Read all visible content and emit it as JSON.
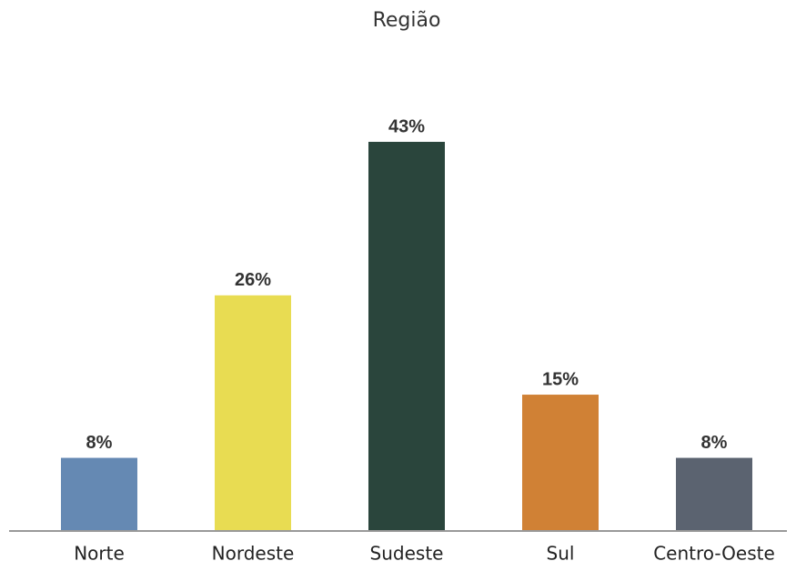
{
  "chart_data": {
    "type": "bar",
    "title": "Região",
    "categories": [
      "Norte",
      "Nordeste",
      "Sudeste",
      "Sul",
      "Centro-Oeste"
    ],
    "values": [
      8,
      26,
      43,
      15,
      8
    ],
    "value_labels": [
      "8%",
      "26%",
      "43%",
      "15%",
      "8%"
    ],
    "colors": [
      "#6589b3",
      "#e8dc52",
      "#2a453c",
      "#d08135",
      "#5b6370"
    ]
  }
}
